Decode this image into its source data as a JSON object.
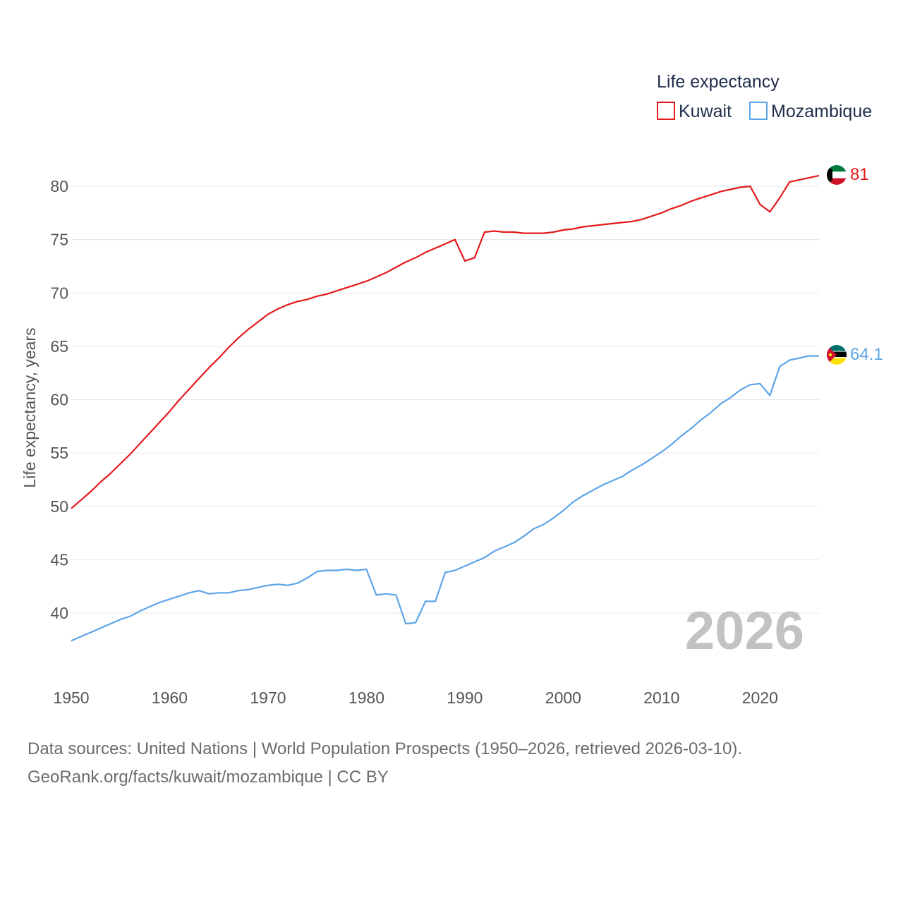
{
  "chart_data": {
    "type": "line",
    "legend_title": "Life expectancy",
    "ylabel": "Life expectancy, years",
    "xlabel": "",
    "xlim": [
      1950,
      2026
    ],
    "ylim": [
      35,
      82
    ],
    "x_ticks": [
      1950,
      1960,
      1970,
      1980,
      1990,
      2000,
      2010,
      2020
    ],
    "y_ticks": [
      40,
      45,
      50,
      55,
      60,
      65,
      70,
      75,
      80
    ],
    "year_watermark": "2026",
    "legend_position": "top-right",
    "grid": true,
    "x": [
      1950,
      1951,
      1952,
      1953,
      1954,
      1955,
      1956,
      1957,
      1958,
      1959,
      1960,
      1961,
      1962,
      1963,
      1964,
      1965,
      1966,
      1967,
      1968,
      1969,
      1970,
      1971,
      1972,
      1973,
      1974,
      1975,
      1976,
      1977,
      1978,
      1979,
      1980,
      1981,
      1982,
      1983,
      1984,
      1985,
      1986,
      1987,
      1988,
      1989,
      1990,
      1991,
      1992,
      1993,
      1994,
      1995,
      1996,
      1997,
      1998,
      1999,
      2000,
      2001,
      2002,
      2003,
      2004,
      2005,
      2006,
      2007,
      2008,
      2009,
      2010,
      2011,
      2012,
      2013,
      2014,
      2015,
      2016,
      2017,
      2018,
      2019,
      2020,
      2021,
      2022,
      2023,
      2024,
      2025,
      2026
    ],
    "series": [
      {
        "name": "Kuwait",
        "color": "#e31a1c",
        "end_label": "81",
        "flag": "kuwait-flag",
        "values": [
          49.8,
          50.6,
          51.4,
          52.3,
          53.1,
          54.0,
          54.9,
          55.9,
          56.9,
          57.9,
          58.9,
          60.0,
          61.0,
          62.0,
          63.0,
          63.9,
          64.9,
          65.8,
          66.6,
          67.3,
          68.0,
          68.5,
          68.9,
          69.2,
          69.4,
          69.7,
          69.9,
          70.2,
          70.5,
          70.8,
          71.1,
          71.5,
          71.9,
          72.4,
          72.9,
          73.3,
          73.8,
          74.2,
          74.6,
          75.0,
          73.0,
          73.3,
          75.7,
          75.8,
          75.7,
          75.7,
          75.6,
          75.6,
          75.6,
          75.7,
          75.9,
          76.0,
          76.2,
          76.3,
          76.4,
          76.5,
          76.6,
          76.7,
          76.9,
          77.2,
          77.5,
          77.9,
          78.2,
          78.6,
          78.9,
          79.2,
          79.5,
          79.7,
          79.9,
          80.0,
          78.3,
          77.6,
          78.9,
          80.4,
          80.6,
          80.8,
          81.0
        ]
      },
      {
        "name": "Mozambique",
        "color": "#5da5e8",
        "end_label": "64.1",
        "flag": "mozambique-flag",
        "values": [
          37.4,
          37.8,
          38.2,
          38.6,
          39.0,
          39.4,
          39.7,
          40.2,
          40.6,
          41.0,
          41.3,
          41.6,
          41.9,
          42.1,
          41.8,
          41.9,
          41.9,
          42.1,
          42.2,
          42.4,
          42.6,
          42.7,
          42.6,
          42.8,
          43.3,
          43.9,
          44.0,
          44.0,
          44.1,
          44.0,
          44.1,
          41.7,
          41.8,
          41.7,
          39.0,
          39.1,
          41.1,
          41.1,
          43.8,
          44.0,
          44.4,
          44.8,
          45.2,
          45.8,
          46.2,
          46.6,
          47.2,
          47.9,
          48.3,
          48.9,
          49.6,
          50.4,
          51.0,
          51.5,
          52.0,
          52.4,
          52.8,
          53.4,
          53.9,
          54.5,
          55.1,
          55.8,
          56.6,
          57.3,
          58.1,
          58.8,
          59.6,
          60.2,
          60.9,
          61.4,
          61.5,
          60.4,
          63.1,
          63.7,
          63.9,
          64.1,
          64.1
        ]
      }
    ]
  },
  "footer": {
    "sources": "Data sources: United Nations | World Population Prospects (1950–2026, retrieved 2026-03-10).",
    "credit": "GeoRank.org/facts/kuwait/mozambique | CC BY"
  }
}
